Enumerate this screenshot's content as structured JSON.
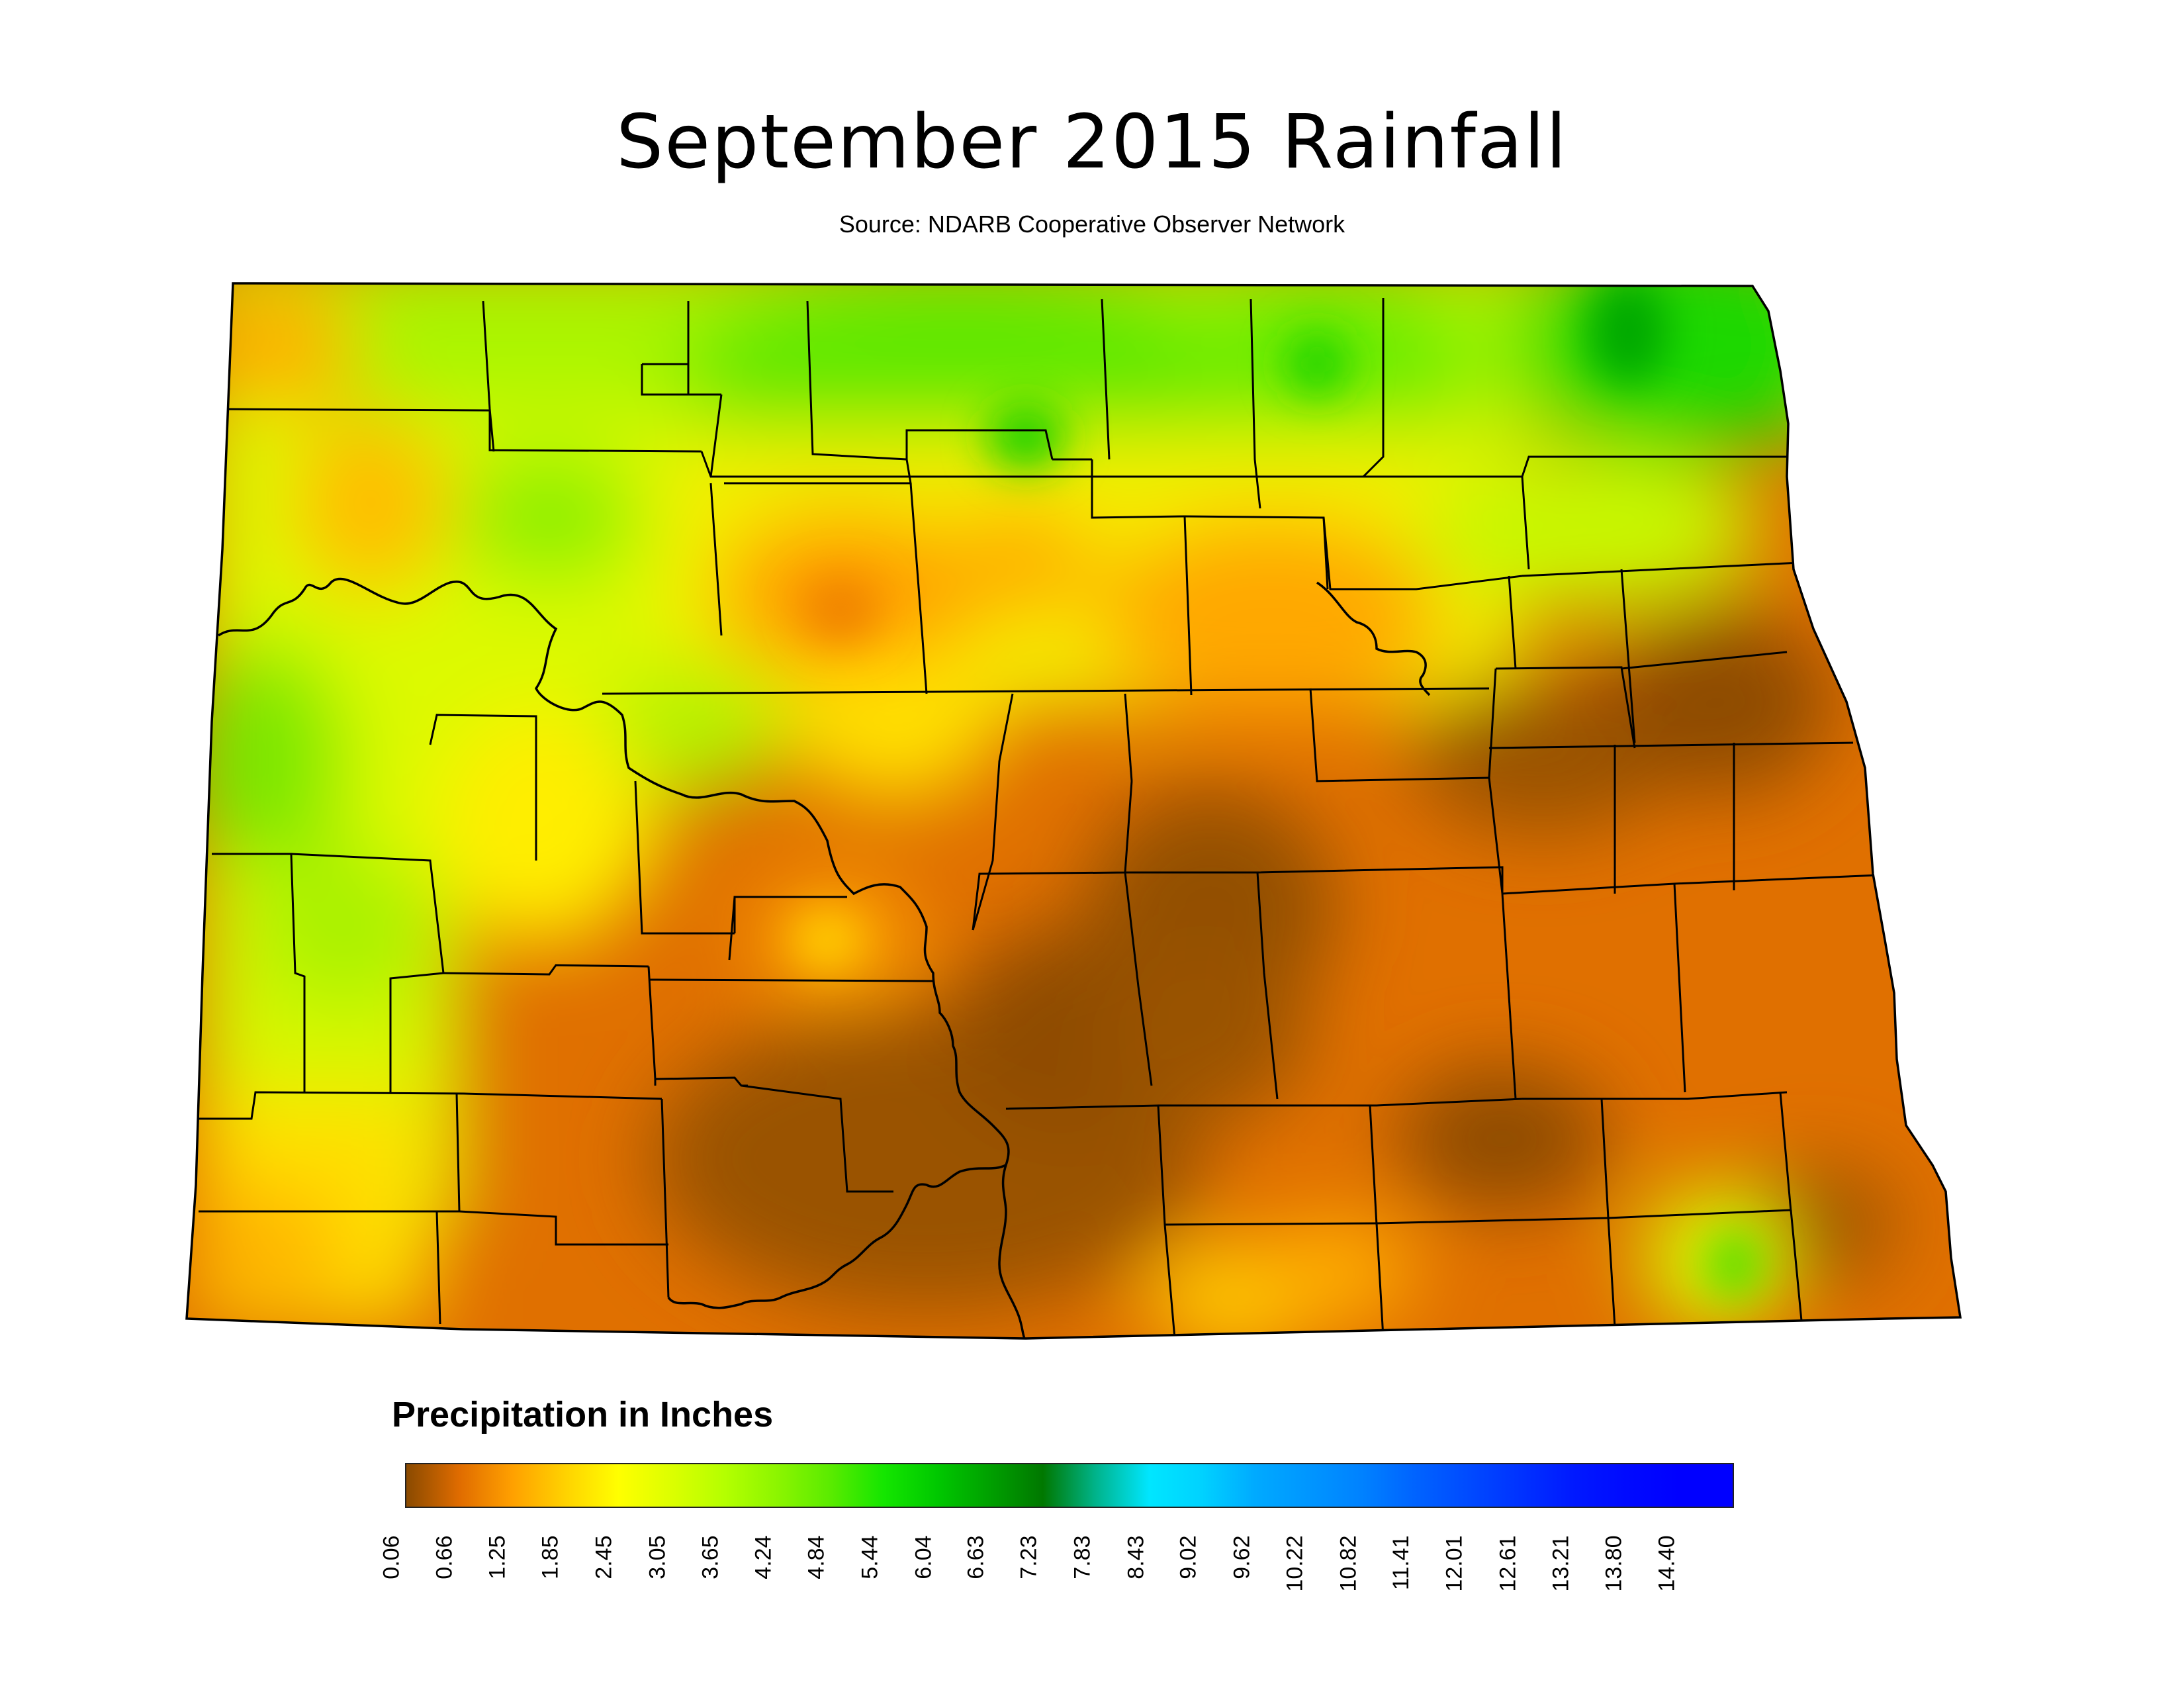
{
  "title": "September 2015 Rainfall",
  "subtitle": "Source: NDARB Cooperative Observer Network",
  "legend": {
    "title": "Precipitation in Inches",
    "min": 0.06,
    "max": 15.0,
    "stops": [
      {
        "value": 0.06,
        "color": "#8a4a00"
      },
      {
        "value": 0.66,
        "color": "#e06c00"
      },
      {
        "value": 1.25,
        "color": "#ffa000"
      },
      {
        "value": 1.85,
        "color": "#ffd200"
      },
      {
        "value": 2.45,
        "color": "#ffff00"
      },
      {
        "value": 3.05,
        "color": "#dcff00"
      },
      {
        "value": 3.65,
        "color": "#b4ff00"
      },
      {
        "value": 4.24,
        "color": "#8cf500"
      },
      {
        "value": 4.84,
        "color": "#5aeb00"
      },
      {
        "value": 5.44,
        "color": "#14e600"
      },
      {
        "value": 6.04,
        "color": "#00c800"
      },
      {
        "value": 6.63,
        "color": "#00a000"
      },
      {
        "value": 7.23,
        "color": "#007800"
      },
      {
        "value": 7.83,
        "color": "#00b48c"
      },
      {
        "value": 8.43,
        "color": "#00e6ff"
      },
      {
        "value": 9.02,
        "color": "#00d2ff"
      },
      {
        "value": 9.62,
        "color": "#00aaff"
      },
      {
        "value": 10.22,
        "color": "#0096ff"
      },
      {
        "value": 10.82,
        "color": "#0082ff"
      },
      {
        "value": 11.41,
        "color": "#0064ff"
      },
      {
        "value": 12.01,
        "color": "#004bff"
      },
      {
        "value": 12.61,
        "color": "#0032ff"
      },
      {
        "value": 13.21,
        "color": "#0019ff"
      },
      {
        "value": 13.8,
        "color": "#000aff"
      },
      {
        "value": 14.4,
        "color": "#0000ff"
      }
    ],
    "tick_labels": [
      "0.06",
      "0.66",
      "1.25",
      "1.85",
      "2.45",
      "3.05",
      "3.65",
      "4.24",
      "4.84",
      "5.44",
      "6.04",
      "6.63",
      "7.23",
      "7.83",
      "8.43",
      "9.02",
      "9.62",
      "10.22",
      "10.82",
      "11.41",
      "12.01",
      "12.61",
      "13.21",
      "13.80",
      "14.40"
    ]
  }
}
